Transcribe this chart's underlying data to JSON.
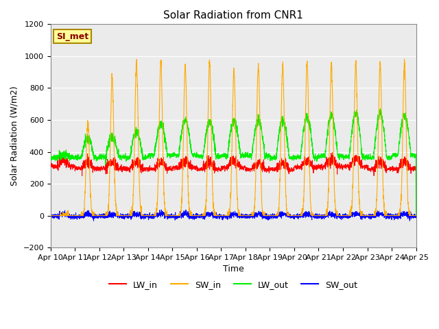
{
  "title": "Solar Radiation from CNR1",
  "xlabel": "Time",
  "ylabel": "Solar Radiation (W/m2)",
  "ylim": [
    -200,
    1200
  ],
  "background_color": "#ffffff",
  "plot_bg_color": "#ebebeb",
  "colors": {
    "LW_in": "#ff0000",
    "SW_in": "#ffaa00",
    "LW_out": "#00ee00",
    "SW_out": "#0000ff"
  },
  "xtick_labels": [
    "Apr 10",
    "Apr 11",
    "Apr 12",
    "Apr 13",
    "Apr 14",
    "Apr 15",
    "Apr 16",
    "Apr 17",
    "Apr 18",
    "Apr 19",
    "Apr 20",
    "Apr 21",
    "Apr 22",
    "Apr 23",
    "Apr 24",
    "Apr 25"
  ],
  "annotation_text": "SI_met",
  "annotation_color": "#880000",
  "annotation_bg": "#ffff99",
  "annotation_border": "#aa8800",
  "grid_color": "#ffffff",
  "num_points": 3000,
  "days": 15
}
